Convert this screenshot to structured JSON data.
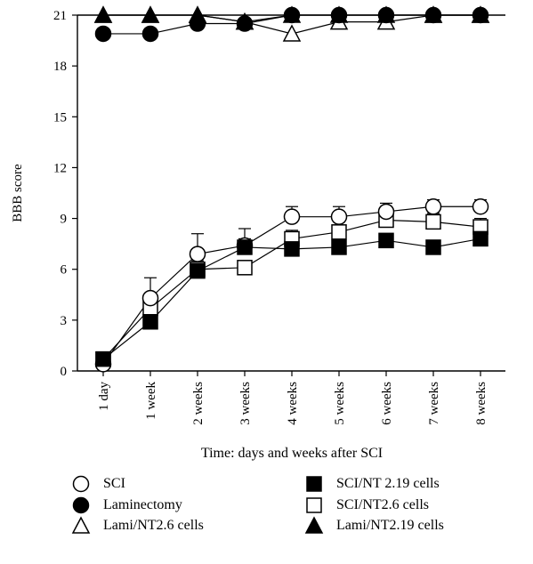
{
  "chart_data": {
    "type": "line",
    "title": "",
    "xlabel": "Time: days and weeks after SCI",
    "ylabel": "BBB score",
    "categories": [
      "1 day",
      "1 week",
      "2 weeks",
      "3 weeks",
      "4 weeks",
      "5 weeks",
      "6 weeks",
      "7 weeks",
      "8 weeks"
    ],
    "ylim": [
      0,
      21
    ],
    "yticks": [
      0,
      3,
      6,
      9,
      12,
      15,
      18,
      21
    ],
    "legend_position": "bottom",
    "series": [
      {
        "name": "SCI",
        "marker": "circle-open",
        "values": [
          0.4,
          4.3,
          6.9,
          7.4,
          9.1,
          9.1,
          9.4,
          9.7,
          9.7
        ],
        "errors": [
          0,
          1.2,
          1.2,
          1.0,
          0.6,
          0.6,
          0.5,
          0.4,
          0.4
        ]
      },
      {
        "name": "Laminectomy",
        "marker": "circle-filled",
        "values": [
          19.9,
          19.9,
          20.5,
          20.5,
          21,
          21,
          21,
          21,
          21
        ],
        "errors": [
          0.3,
          0.3,
          0.3,
          0.3,
          0,
          0,
          0,
          0,
          0
        ]
      },
      {
        "name": "Lami/NT2.6 cells",
        "marker": "triangle-open",
        "values": [
          21,
          21,
          21,
          20.6,
          19.9,
          20.6,
          20.6,
          21,
          21
        ],
        "errors": [
          0,
          0,
          0,
          0,
          0,
          0,
          0,
          0,
          0
        ]
      },
      {
        "name": "SCI/NT 2.19 cells",
        "marker": "square-filled",
        "values": [
          0.7,
          2.9,
          5.9,
          7.3,
          7.2,
          7.3,
          7.7,
          7.3,
          7.8
        ],
        "errors": [
          0,
          0.3,
          0.4,
          0.5,
          0.4,
          0.4,
          0.4,
          0.4,
          0.4
        ]
      },
      {
        "name": "SCI/NT2.6 cells",
        "marker": "square-open",
        "values": [
          0.7,
          3.7,
          6.0,
          6.1,
          7.8,
          8.2,
          8.9,
          8.8,
          8.5
        ],
        "errors": [
          0,
          0.5,
          0.5,
          0,
          0.5,
          0.6,
          0.5,
          0.5,
          0.5
        ]
      },
      {
        "name": "Lami/NT2.19 cells",
        "marker": "triangle-filled",
        "values": [
          21,
          21,
          21,
          20.6,
          21,
          21,
          21,
          21,
          21
        ],
        "errors": [
          0,
          0,
          0,
          0,
          0,
          0,
          0,
          0,
          0
        ]
      }
    ]
  }
}
